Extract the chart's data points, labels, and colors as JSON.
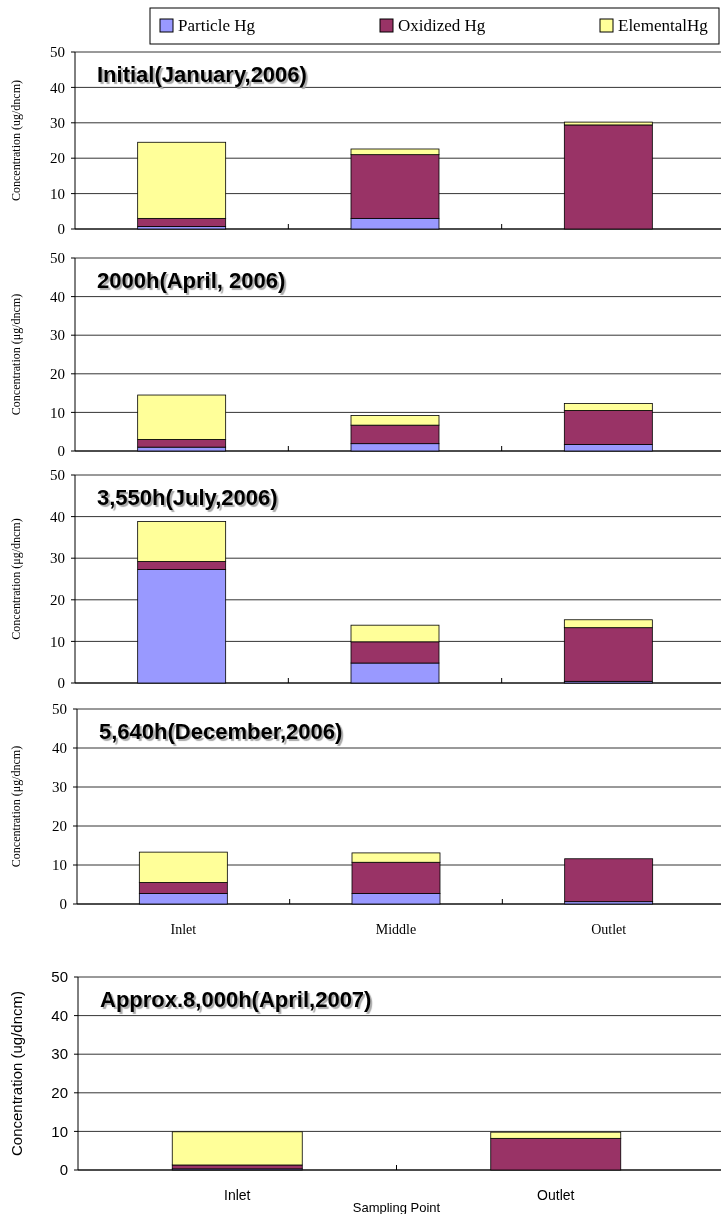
{
  "chart_data": [
    {
      "type": "bar",
      "stacked": true,
      "title": "Initial(January,2006)",
      "ylabel": "Concentration (ug/dncm)",
      "categories": [
        null,
        null,
        null
      ],
      "ylim": [
        0,
        50
      ],
      "yticks": [
        0,
        10,
        20,
        30,
        40,
        50
      ],
      "grid": "y",
      "legend": "top",
      "tick_labels": "y",
      "series": [
        {
          "name": "Particle Hg",
          "color": "#9999ff",
          "values": [
            0.7,
            3.0,
            0
          ]
        },
        {
          "name": "Oxidized Hg",
          "color": "#993366",
          "values": [
            2.3,
            18.0,
            29.4
          ]
        },
        {
          "name": "ElementalHg",
          "color": "#ffff99",
          "values": [
            21.5,
            1.6,
            0.8
          ]
        }
      ]
    },
    {
      "type": "bar",
      "stacked": true,
      "title": "2000h(April, 2006)",
      "ylabel": "Concentration (μg/dncm)",
      "categories": [
        null,
        null,
        null
      ],
      "ylim": [
        0,
        50
      ],
      "yticks": [
        0,
        10,
        20,
        30,
        40,
        50
      ],
      "grid": "y",
      "tick_labels": "y",
      "series": [
        {
          "color": "#9999ff",
          "values": [
            1.0,
            1.9,
            1.7
          ]
        },
        {
          "color": "#993366",
          "values": [
            2.0,
            4.8,
            8.8
          ]
        },
        {
          "color": "#ffff99",
          "values": [
            11.5,
            2.5,
            1.8
          ]
        }
      ]
    },
    {
      "type": "bar",
      "stacked": true,
      "title": "3,550h(July,2006)",
      "ylabel": "Concentration (μg/dncm)",
      "categories": [
        null,
        null,
        null
      ],
      "ylim": [
        0,
        50
      ],
      "yticks": [
        0,
        10,
        20,
        30,
        40,
        50
      ],
      "grid": "y",
      "tick_labels": "y",
      "series": [
        {
          "color": "#9999ff",
          "values": [
            27.3,
            4.8,
            0.4
          ]
        },
        {
          "color": "#993366",
          "values": [
            1.9,
            5.1,
            12.9
          ]
        },
        {
          "color": "#ffff99",
          "values": [
            9.6,
            4.0,
            1.9
          ]
        }
      ]
    },
    {
      "type": "bar",
      "stacked": true,
      "title": "5,640h(December,2006)",
      "ylabel": "Concentration (μg/dncm)",
      "categories": [
        "Inlet",
        "Middle",
        "Outlet"
      ],
      "ylim": [
        0,
        50
      ],
      "yticks": [
        0,
        10,
        20,
        30,
        40,
        50
      ],
      "grid": "y",
      "series": [
        {
          "color": "#9999ff",
          "values": [
            2.7,
            2.7,
            0.6
          ]
        },
        {
          "color": "#993366",
          "values": [
            2.8,
            8.0,
            11.0
          ]
        },
        {
          "color": "#ffff99",
          "values": [
            7.8,
            2.4,
            0
          ]
        }
      ]
    },
    {
      "type": "bar",
      "stacked": true,
      "title": "Approx.8,000h(April,2007)",
      "ylabel": "Concentration (ug/dncm)",
      "xlabel": "Sampling Point",
      "categories": [
        "Inlet",
        "Outlet"
      ],
      "ylim": [
        0,
        50
      ],
      "yticks": [
        0,
        10,
        20,
        30,
        40,
        50
      ],
      "grid": "y",
      "series": [
        {
          "color": "#9999ff",
          "values": [
            0.3,
            0
          ]
        },
        {
          "color": "#993366",
          "values": [
            1.0,
            8.2
          ]
        },
        {
          "color": "#ffff99",
          "values": [
            8.6,
            1.6
          ]
        }
      ]
    }
  ]
}
